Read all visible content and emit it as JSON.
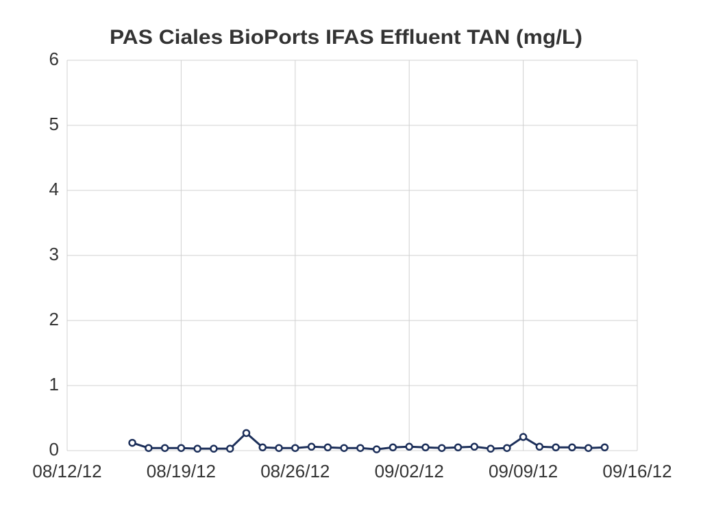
{
  "chart_data": {
    "type": "line",
    "title": "PAS Ciales BioPorts IFAS Effluent TAN (mg/L)",
    "x": [
      "08/16/12",
      "08/17/12",
      "08/18/12",
      "08/19/12",
      "08/20/12",
      "08/21/12",
      "08/22/12",
      "08/23/12",
      "08/24/12",
      "08/25/12",
      "08/26/12",
      "08/27/12",
      "08/28/12",
      "08/29/12",
      "08/30/12",
      "08/31/12",
      "09/01/12",
      "09/02/12",
      "09/03/12",
      "09/04/12",
      "09/05/12",
      "09/06/12",
      "09/07/12",
      "09/08/12",
      "09/09/12",
      "09/10/12",
      "09/11/12",
      "09/12/12",
      "09/13/12",
      "09/14/12"
    ],
    "series": [
      {
        "color": "#1c2f5a",
        "values": [
          0.12,
          0.04,
          0.04,
          0.04,
          0.03,
          0.03,
          0.03,
          0.27,
          0.05,
          0.04,
          0.04,
          0.06,
          0.05,
          0.04,
          0.04,
          0.02,
          0.05,
          0.06,
          0.05,
          0.04,
          0.05,
          0.06,
          0.03,
          0.04,
          0.21,
          0.06,
          0.05,
          0.05,
          0.04,
          0.05
        ]
      }
    ],
    "xlim": [
      "08/12/12",
      "09/16/12"
    ],
    "xticks": [
      "08/12/12",
      "08/19/12",
      "08/26/12",
      "09/02/12",
      "09/09/12",
      "09/16/12"
    ],
    "ylim": [
      0,
      6
    ],
    "yticks": [
      0,
      1,
      2,
      3,
      4,
      5,
      6
    ],
    "grid": true
  }
}
